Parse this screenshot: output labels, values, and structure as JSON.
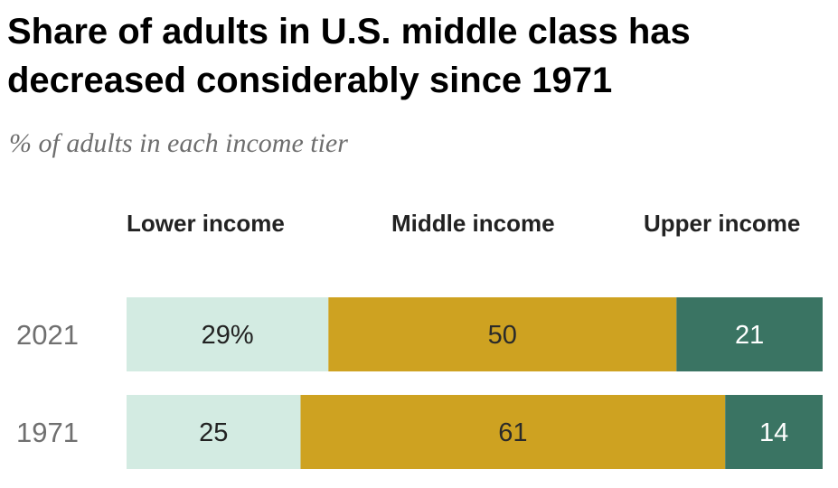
{
  "chart_data": {
    "type": "bar",
    "orientation": "horizontal-stacked",
    "title": "Share of adults in U.S. middle class has decreased considerably since 1971",
    "subtitle": "% of adults in each income tier",
    "categories": [
      "2021",
      "1971"
    ],
    "series": [
      {
        "name": "Lower income",
        "values": [
          29,
          25
        ],
        "color": "#d3ebe2",
        "label_color": "#222222"
      },
      {
        "name": "Middle income",
        "values": [
          50,
          61
        ],
        "color": "#cea221",
        "label_color": "#2a2a2a"
      },
      {
        "name": "Upper income",
        "values": [
          21,
          14
        ],
        "color": "#3a7463",
        "label_color": "#ffffff"
      }
    ],
    "data_labels": [
      [
        "29%",
        "50",
        "21"
      ],
      [
        "25",
        "61",
        "14"
      ]
    ],
    "xlim": [
      0,
      100
    ],
    "legend": "top",
    "grid": false,
    "xlabel": "",
    "ylabel": ""
  }
}
